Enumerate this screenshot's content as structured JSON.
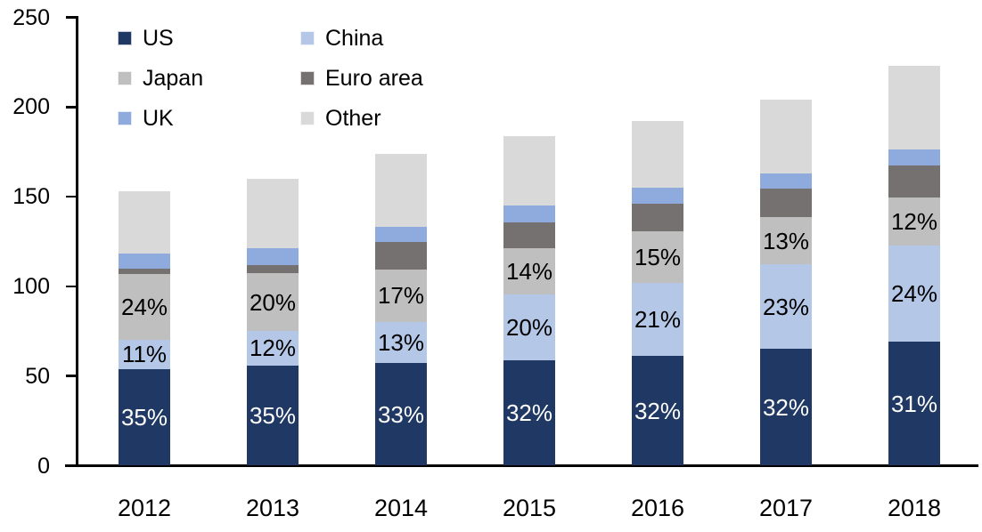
{
  "chart_data": {
    "type": "bar",
    "subtype": "stacked",
    "title": "",
    "categories": [
      "2012",
      "2013",
      "2014",
      "2015",
      "2016",
      "2017",
      "2018"
    ],
    "series": [
      {
        "name": "US",
        "color": "#1F3864",
        "label_color": "#FFFFFF",
        "values": [
          53.6,
          56.0,
          57.4,
          58.9,
          61.4,
          65.3,
          69.1
        ],
        "labels": [
          "35%",
          "35%",
          "33%",
          "32%",
          "32%",
          "32%",
          "31%"
        ]
      },
      {
        "name": "China",
        "color": "#B4C7E7",
        "label_color": "#000000",
        "values": [
          16.8,
          19.2,
          22.6,
          36.8,
          40.3,
          46.9,
          53.5
        ],
        "labels": [
          "11%",
          "12%",
          "13%",
          "20%",
          "21%",
          "23%",
          "24%"
        ]
      },
      {
        "name": "Japan",
        "color": "#BFBFBF",
        "label_color": "#000000",
        "values": [
          36.7,
          32.0,
          29.6,
          25.8,
          28.8,
          26.5,
          26.8
        ],
        "labels": [
          "24%",
          "20%",
          "17%",
          "14%",
          "15%",
          "13%",
          "12%"
        ]
      },
      {
        "name": "Euro area",
        "color": "#767171",
        "label_color": "#000000",
        "values": [
          3.0,
          4.5,
          15.2,
          14.4,
          15.4,
          15.7,
          18.0
        ],
        "labels": null
      },
      {
        "name": "UK",
        "color": "#8FAADC",
        "label_color": "#000000",
        "values": [
          8.4,
          9.4,
          8.6,
          9.4,
          8.9,
          8.6,
          9.1
        ],
        "labels": null
      },
      {
        "name": "Other",
        "color": "#D9D9D9",
        "label_color": "#000000",
        "values": [
          34.5,
          38.9,
          40.6,
          38.7,
          37.2,
          41.0,
          46.5
        ],
        "labels": null
      }
    ],
    "totals": [
      153,
      160,
      174,
      184,
      192,
      204,
      223
    ],
    "y_axis": {
      "min": 0,
      "max": 250,
      "step": 50,
      "tick_labels": [
        "0",
        "50",
        "100",
        "150",
        "200",
        "250"
      ]
    },
    "x_axis": {
      "tick_labels": [
        "2012",
        "2013",
        "2014",
        "2015",
        "2016",
        "2017",
        "2018"
      ]
    },
    "legend": {
      "position": "top-left",
      "columns": 2,
      "order": [
        "US",
        "China",
        "Japan",
        "Euro area",
        "UK",
        "Other"
      ]
    },
    "grid": false,
    "axis_color": "#000000",
    "background_color": "#FFFFFF"
  }
}
